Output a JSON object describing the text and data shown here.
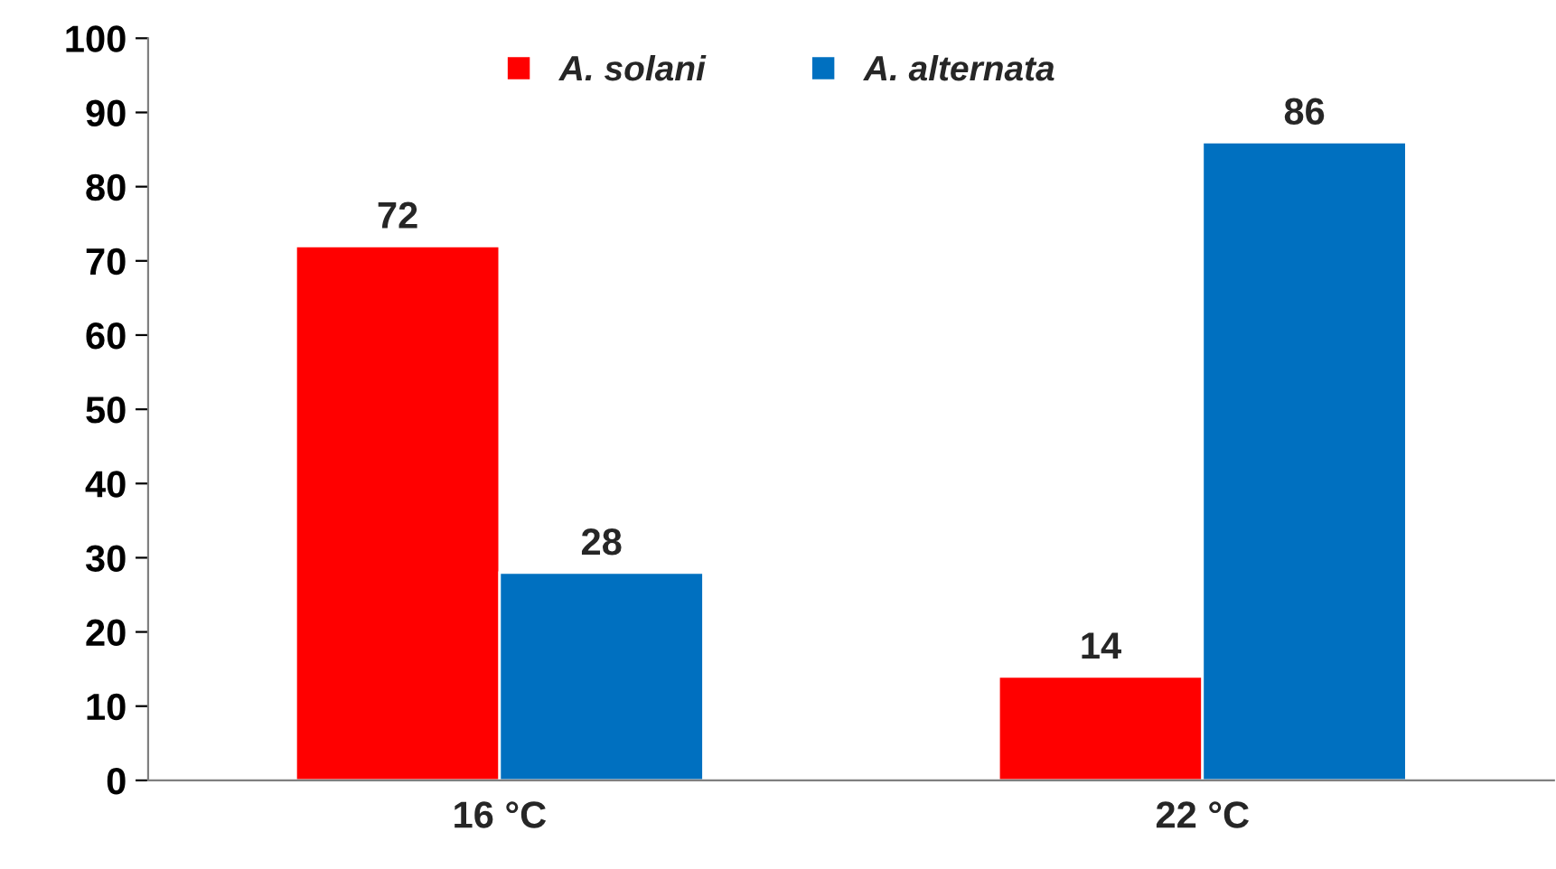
{
  "chart_data": {
    "type": "bar",
    "categories": [
      "16 °C",
      "22 °C"
    ],
    "series": [
      {
        "name": "A. solani",
        "color": "#ff0000",
        "values": [
          72,
          14
        ]
      },
      {
        "name": "A. alternata",
        "color": "#0070c0",
        "values": [
          28,
          86
        ]
      }
    ],
    "ylim": [
      0,
      100
    ],
    "yticks": [
      0,
      10,
      20,
      30,
      40,
      50,
      60,
      70,
      80,
      90,
      100
    ],
    "data_labels": true,
    "grid": false,
    "legend": "top"
  }
}
